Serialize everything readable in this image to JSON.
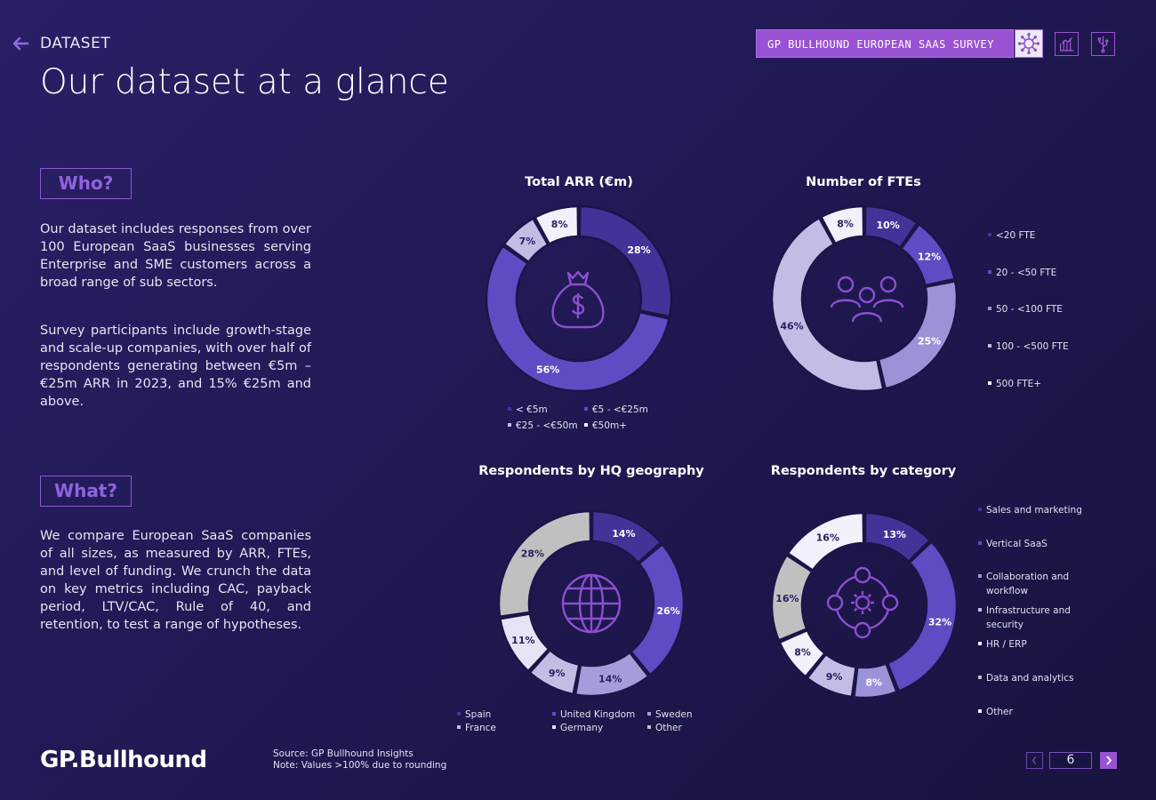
{
  "header": {
    "section_label": "DATASET",
    "page_title": "Our dataset at a glance",
    "survey_label": "GP BULLHOUND EUROPEAN SAAS SURVEY"
  },
  "icons": {
    "back": "arrow-left-icon",
    "virus": "virus-icon",
    "chart": "bar-chart-icon",
    "usb": "usb-icon",
    "money": "money-bag-icon",
    "people": "people-icon",
    "globe": "globe-icon",
    "network": "gear-network-icon"
  },
  "who": {
    "label": "Who?",
    "paragraphs": [
      "Our dataset includes responses from over 100 European SaaS businesses serving Enterprise and SME customers across a broad range of sub sectors.",
      "Survey participants include growth-stage and scale-up companies, with over half of respondents generating between €5m – €25m ARR in 2023, and 15% €25m and above."
    ]
  },
  "what": {
    "label": "What?",
    "paragraphs": [
      "We compare European SaaS companies of all sizes, as measured by ARR, FTEs, and level of funding. We crunch the data on key metrics including CAC, payback period, LTV/CAC, Rule of 40, and retention, to test a range of hypotheses."
    ]
  },
  "chart_data": [
    {
      "type": "pie",
      "title": "Total ARR (€m)",
      "categories": [
        "< €5m",
        "€5 - <€25m",
        "€25 - <€50m",
        "€50m+"
      ],
      "values": [
        28,
        56,
        7,
        8
      ],
      "labels": [
        "28%",
        "56%",
        "7%",
        "8%"
      ],
      "colors": [
        "#423399",
        "#5c4dc4",
        "#c3bde6",
        "#f2f0fa"
      ],
      "legend_position": "bottom"
    },
    {
      "type": "pie",
      "title": "Number of FTEs",
      "categories": [
        "<20 FTE",
        "20 - <50 FTE",
        "50 - <100 FTE",
        "100 - <500 FTE",
        "500 FTE+"
      ],
      "values": [
        10,
        12,
        25,
        46,
        8
      ],
      "labels": [
        "10%",
        "12%",
        "25%",
        "46%",
        "8%"
      ],
      "colors": [
        "#423399",
        "#5c4dc4",
        "#9b93d8",
        "#c3bde6",
        "#f2f0fa"
      ],
      "legend_position": "right"
    },
    {
      "type": "pie",
      "title": "Respondents by HQ geography",
      "categories": [
        "Spain",
        "United Kingdom",
        "Sweden",
        "France",
        "Germany",
        "Other"
      ],
      "values": [
        14,
        26,
        14,
        9,
        11,
        28
      ],
      "labels": [
        "14%",
        "26%",
        "14%",
        "9%",
        "11%",
        "28%"
      ],
      "colors": [
        "#423399",
        "#5c4dc4",
        "#a39ddb",
        "#c3bde6",
        "#e6e3f4",
        "#c0c0c0"
      ],
      "legend_position": "bottom"
    },
    {
      "type": "pie",
      "title": "Respondents by category",
      "categories": [
        "Sales and marketing",
        "Vertical SaaS",
        "Collaboration and workflow",
        "Infrastructure and security",
        "HR / ERP",
        "Data and analytics",
        "Other"
      ],
      "values": [
        13,
        32,
        8,
        9,
        8,
        16,
        16
      ],
      "labels": [
        "13%",
        "32%",
        "8%",
        "9%",
        "8%",
        "16%",
        "16%"
      ],
      "colors": [
        "#423399",
        "#5c4dc4",
        "#9b93d8",
        "#c3bde6",
        "#f2f0fa",
        "#c0c0c0",
        "#f2f0fa"
      ],
      "legend_position": "right"
    }
  ],
  "legend_cat": {
    "line1": [
      "Sales and marketing"
    ],
    "line2": [
      "Vertical SaaS"
    ],
    "line3": [
      "Collaboration and",
      "workflow"
    ],
    "line4": [
      "Infrastructure and",
      "security"
    ],
    "line5": [
      "HR / ERP"
    ],
    "line6": [
      "Data and analytics"
    ],
    "line7": [
      "Other"
    ]
  },
  "footer": {
    "logo": "GP.Bullhound",
    "source": "Source: GP Bullhound Insights",
    "note": "Note: Values >100% due to rounding",
    "page_number": "6"
  }
}
